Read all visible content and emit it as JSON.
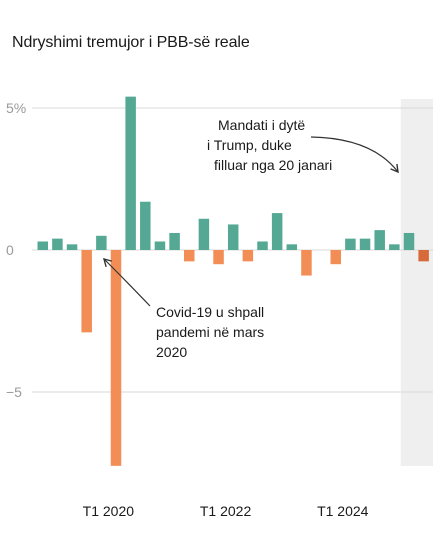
{
  "chart_data": {
    "type": "bar",
    "title": "Ndryshimi tremujor i PBB-së reale",
    "ylim": [
      -7.8,
      5.5
    ],
    "y_ticks": [
      {
        "value": 5,
        "label": "5%"
      },
      {
        "value": 0,
        "label": "0"
      },
      {
        "value": -5,
        "label": "−5"
      }
    ],
    "x_tick_labels": [
      {
        "quarter_index": 4,
        "label": "T1 2020"
      },
      {
        "quarter_index": 12,
        "label": "T1 2022"
      },
      {
        "quarter_index": 20,
        "label": "T1 2024"
      }
    ],
    "series": [
      {
        "values": [
          0.3,
          0.4,
          0.2,
          -2.9,
          0.5,
          -7.6,
          5.4,
          1.7,
          0.3,
          0.6,
          -0.4,
          1.1,
          -0.5,
          0.9,
          -0.4,
          0.3,
          1.3,
          0.2,
          -0.9,
          0,
          -0.5,
          0.4,
          0.4,
          0.7,
          0.2,
          0.6,
          -0.4
        ]
      }
    ],
    "colors": {
      "positive": "#55a994",
      "negative": "#f28e55",
      "negative_highlight": "#d86a3a",
      "shade": "#efefef",
      "grid": "#d9d9d9",
      "arrow": "#333333"
    },
    "shaded_from_index": 25,
    "annotations": [
      {
        "lines": [
          "Mandati i dytë",
          "i Trump, duke",
          "filluar nga 20 janari"
        ]
      },
      {
        "lines": [
          "Covid-19 u shpall",
          "pandemi në mars",
          "2020"
        ]
      }
    ]
  }
}
